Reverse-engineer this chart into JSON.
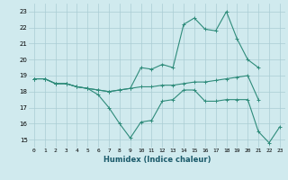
{
  "xlabel": "Humidex (Indice chaleur)",
  "x_values": [
    0,
    1,
    2,
    3,
    4,
    5,
    6,
    7,
    8,
    9,
    10,
    11,
    12,
    13,
    14,
    15,
    16,
    17,
    18,
    19,
    20,
    21,
    22,
    23
  ],
  "line1_y": [
    18.8,
    18.8,
    18.5,
    18.5,
    18.3,
    18.2,
    17.8,
    17.0,
    16.0,
    15.1,
    16.1,
    16.2,
    17.4,
    17.5,
    18.1,
    18.1,
    17.4,
    17.4,
    17.5,
    17.5,
    17.5,
    15.5,
    14.8,
    15.8
  ],
  "line2_y": [
    18.8,
    18.8,
    18.5,
    18.5,
    18.3,
    18.2,
    18.1,
    18.0,
    18.1,
    18.2,
    19.5,
    19.4,
    19.7,
    19.5,
    22.2,
    22.6,
    21.9,
    21.8,
    23.0,
    21.3,
    20.0,
    19.5,
    null,
    null
  ],
  "line3_y": [
    18.8,
    18.8,
    18.5,
    18.5,
    18.3,
    18.2,
    18.1,
    18.0,
    18.1,
    18.2,
    18.3,
    18.3,
    18.4,
    18.4,
    18.5,
    18.6,
    18.6,
    18.7,
    18.8,
    18.9,
    19.0,
    17.5,
    null,
    null
  ],
  "color": "#2e8b7a",
  "bg_color": "#d0eaee",
  "grid_color": "#aaccd4",
  "ylim": [
    14.5,
    23.5
  ],
  "yticks": [
    15,
    16,
    17,
    18,
    19,
    20,
    21,
    22,
    23
  ],
  "xticks": [
    0,
    1,
    2,
    3,
    4,
    5,
    6,
    7,
    8,
    9,
    10,
    11,
    12,
    13,
    14,
    15,
    16,
    17,
    18,
    19,
    20,
    21,
    22,
    23
  ]
}
